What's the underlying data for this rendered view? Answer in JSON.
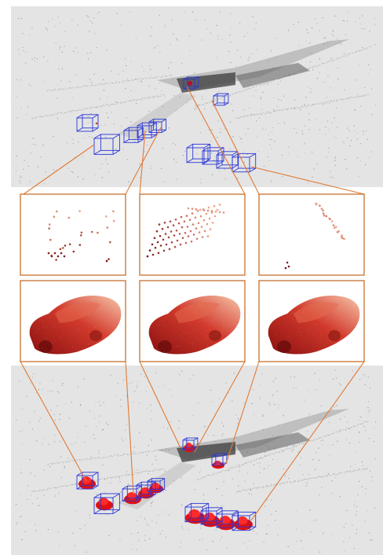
{
  "colors": {
    "scene_background": "#e4e4e4",
    "page_background": "#ffffff",
    "connector": "#e07a35",
    "panel_border": "#c8702e",
    "bbox": "#2a36d8",
    "completed_car": "#e01010",
    "partial_point_dark": "#7a1414",
    "partial_point_light": "#f1a486",
    "car_dark": "#8a1010",
    "car_mid": "#d23a2c",
    "car_light": "#f7c7ac",
    "scene_points": "#7d7d7d"
  },
  "icons": {
    "bbox_marker": "wireframe-cube-icon",
    "car_marker": "red-car-point-cloud-icon"
  },
  "panels": {
    "partial_count": 3,
    "completed_count": 3
  }
}
